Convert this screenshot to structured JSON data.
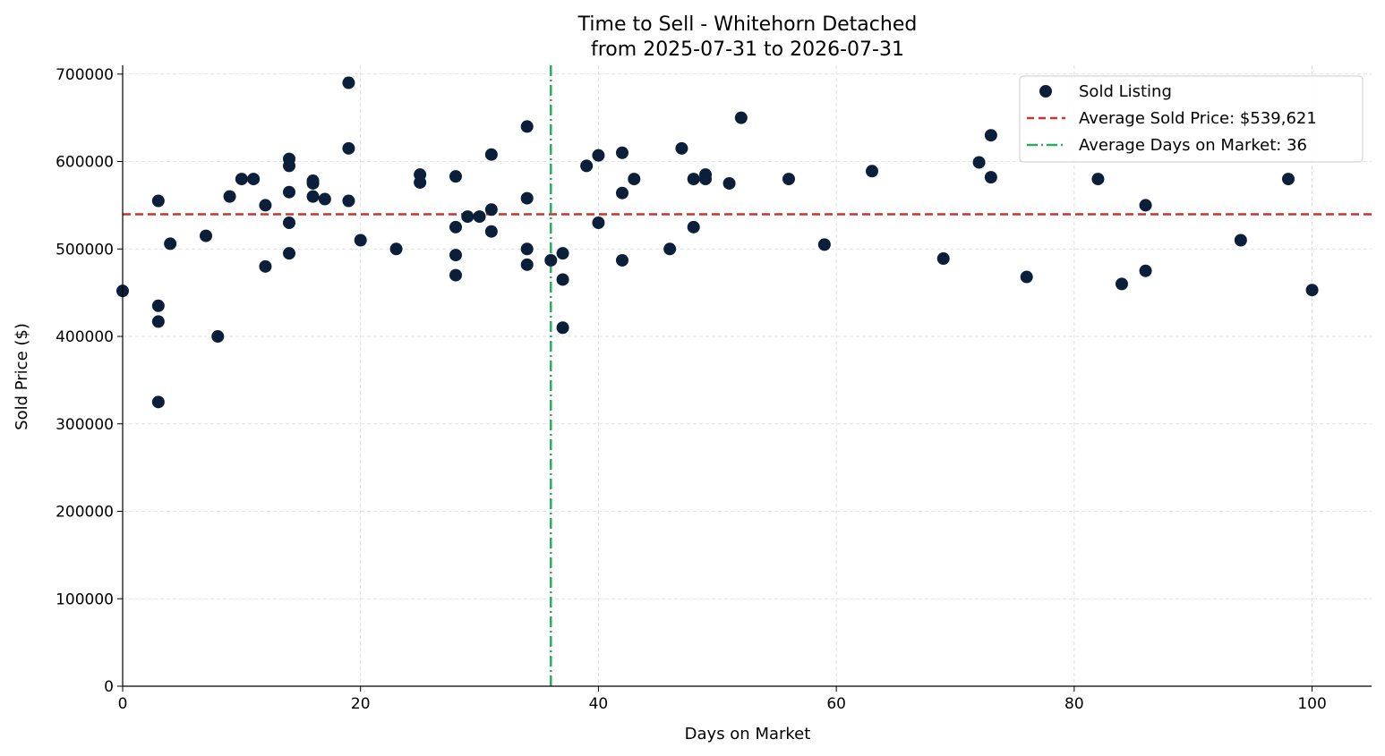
{
  "chart_data": {
    "type": "scatter",
    "title_line1": "Time to Sell - Whitehorn Detached",
    "title_line2": "from 2025-07-31 to 2026-07-31",
    "xlabel": "Days on Market",
    "ylabel": "Sold Price ($)",
    "xlim": [
      0,
      105
    ],
    "ylim": [
      0,
      710000
    ],
    "x_ticks": [
      0,
      20,
      40,
      60,
      80,
      100
    ],
    "y_ticks": [
      0,
      100000,
      200000,
      300000,
      400000,
      500000,
      600000,
      700000
    ],
    "x_tick_labels": [
      "0",
      "20",
      "40",
      "60",
      "80",
      "100"
    ],
    "y_tick_labels": [
      "0",
      "100000",
      "200000",
      "300000",
      "400000",
      "500000",
      "600000",
      "700000"
    ],
    "grid": true,
    "legend_position": "top-right",
    "colors": {
      "points": "#0b1f3a",
      "avg_price_line": "#c0392b",
      "avg_days_line": "#27ae60",
      "grid": "#d9d9d9"
    },
    "series": [
      {
        "name": "Sold Listing",
        "points": [
          [
            0,
            452000
          ],
          [
            3,
            555000
          ],
          [
            3,
            435000
          ],
          [
            3,
            417000
          ],
          [
            3,
            325000
          ],
          [
            4,
            506000
          ],
          [
            7,
            515000
          ],
          [
            8,
            400000
          ],
          [
            9,
            560000
          ],
          [
            10,
            580000
          ],
          [
            11,
            580000
          ],
          [
            12,
            550000
          ],
          [
            12,
            480000
          ],
          [
            14,
            603000
          ],
          [
            14,
            595000
          ],
          [
            14,
            565000
          ],
          [
            14,
            530000
          ],
          [
            14,
            495000
          ],
          [
            16,
            578000
          ],
          [
            16,
            575000
          ],
          [
            16,
            560000
          ],
          [
            17,
            557000
          ],
          [
            19,
            690000
          ],
          [
            19,
            615000
          ],
          [
            19,
            555000
          ],
          [
            20,
            510000
          ],
          [
            23,
            500000
          ],
          [
            25,
            585000
          ],
          [
            25,
            576000
          ],
          [
            28,
            583000
          ],
          [
            28,
            525000
          ],
          [
            28,
            493000
          ],
          [
            28,
            470000
          ],
          [
            29,
            537000
          ],
          [
            30,
            537000
          ],
          [
            31,
            608000
          ],
          [
            31,
            545000
          ],
          [
            31,
            520000
          ],
          [
            34,
            640000
          ],
          [
            34,
            558000
          ],
          [
            34,
            500000
          ],
          [
            34,
            482000
          ],
          [
            36,
            487000
          ],
          [
            37,
            495000
          ],
          [
            37,
            465000
          ],
          [
            37,
            410000
          ],
          [
            39,
            595000
          ],
          [
            40,
            607000
          ],
          [
            40,
            530000
          ],
          [
            42,
            610000
          ],
          [
            42,
            564000
          ],
          [
            42,
            487000
          ],
          [
            43,
            580000
          ],
          [
            46,
            500000
          ],
          [
            47,
            615000
          ],
          [
            48,
            580000
          ],
          [
            48,
            525000
          ],
          [
            49,
            585000
          ],
          [
            49,
            580000
          ],
          [
            51,
            575000
          ],
          [
            52,
            650000
          ],
          [
            56,
            580000
          ],
          [
            59,
            505000
          ],
          [
            63,
            589000
          ],
          [
            69,
            489000
          ],
          [
            72,
            599000
          ],
          [
            73,
            630000
          ],
          [
            73,
            582000
          ],
          [
            76,
            468000
          ],
          [
            82,
            580000
          ],
          [
            84,
            460000
          ],
          [
            86,
            550000
          ],
          [
            86,
            475000
          ],
          [
            94,
            510000
          ],
          [
            98,
            580000
          ],
          [
            100,
            453000
          ]
        ]
      }
    ],
    "average_sold_price": 539621,
    "average_days_on_market": 36,
    "legend": {
      "sold_listing": "Sold Listing",
      "avg_price": "Average Sold Price: $539,621",
      "avg_days": "Average Days on Market: 36"
    }
  }
}
